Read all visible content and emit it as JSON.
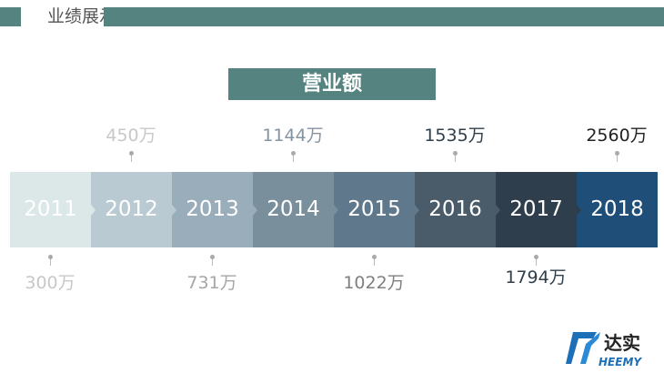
{
  "header": {
    "title": "业绩展示"
  },
  "chart_title": "营业额",
  "timeline": [
    {
      "year": "2011",
      "value": "300万",
      "color": "#dce7e8",
      "label_color": "#c8c8c8",
      "pos": "below"
    },
    {
      "year": "2012",
      "value": "450万",
      "color": "#b9cad2",
      "label_color": "#c8c8c8",
      "pos": "above"
    },
    {
      "year": "2013",
      "value": "731万",
      "color": "#9aadba",
      "label_color": "#a6a6a6",
      "pos": "below"
    },
    {
      "year": "2014",
      "value": "1144万",
      "color": "#7a8f9c",
      "label_color": "#8593a0",
      "pos": "above"
    },
    {
      "year": "2015",
      "value": "1022万",
      "color": "#5f788c",
      "label_color": "#7f7f7f",
      "pos": "below"
    },
    {
      "year": "2016",
      "value": "1535万",
      "color": "#4a5b6a",
      "label_color": "#2f3f4c",
      "pos": "above"
    },
    {
      "year": "2017",
      "value": "1794万",
      "color": "#2e3e4c",
      "label_color": "#2f3f4c",
      "pos": "below"
    },
    {
      "year": "2018",
      "value": "2560万",
      "color": "#1f4e79",
      "label_color": "#222222",
      "pos": "above"
    }
  ],
  "logo": {
    "cn": "达实",
    "en": "HEEMY"
  }
}
